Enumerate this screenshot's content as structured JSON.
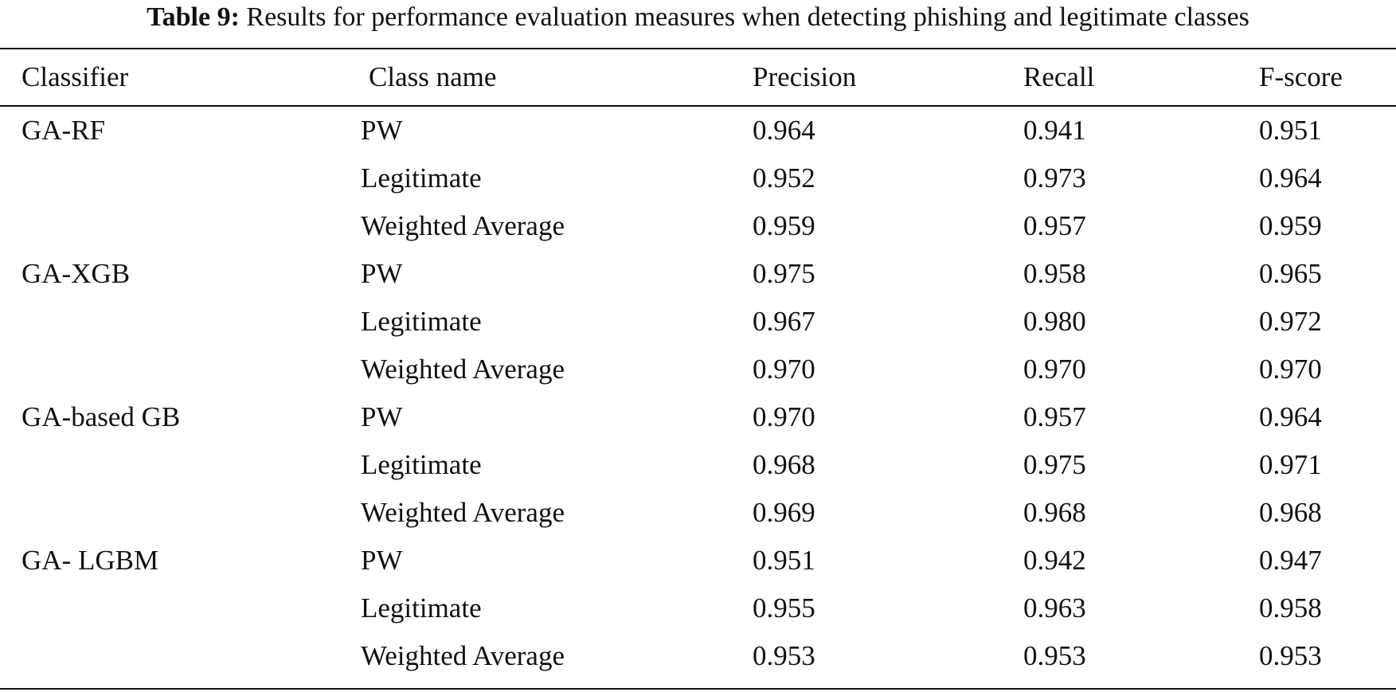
{
  "caption": {
    "label": "Table 9:",
    "text": "Results for performance evaluation measures when detecting phishing and legitimate classes"
  },
  "table": {
    "headers": [
      "Classifier",
      "Class name",
      "Precision",
      "Recall",
      "F-score"
    ],
    "rows": [
      {
        "classifier": "GA-RF",
        "class_name": "PW",
        "precision": "0.964",
        "recall": "0.941",
        "f_score": "0.951"
      },
      {
        "classifier": "",
        "class_name": "Legitimate",
        "precision": "0.952",
        "recall": "0.973",
        "f_score": "0.964"
      },
      {
        "classifier": "",
        "class_name": "Weighted Average",
        "precision": "0.959",
        "recall": "0.957",
        "f_score": "0.959"
      },
      {
        "classifier": "GA-XGB",
        "class_name": "PW",
        "precision": "0.975",
        "recall": "0.958",
        "f_score": "0.965"
      },
      {
        "classifier": "",
        "class_name": "Legitimate",
        "precision": "0.967",
        "recall": "0.980",
        "f_score": "0.972"
      },
      {
        "classifier": "",
        "class_name": "Weighted Average",
        "precision": "0.970",
        "recall": "0.970",
        "f_score": "0.970"
      },
      {
        "classifier": "GA-based GB",
        "class_name": "PW",
        "precision": "0.970",
        "recall": "0.957",
        "f_score": "0.964"
      },
      {
        "classifier": "",
        "class_name": "Legitimate",
        "precision": "0.968",
        "recall": "0.975",
        "f_score": "0.971"
      },
      {
        "classifier": "",
        "class_name": "Weighted Average",
        "precision": "0.969",
        "recall": "0.968",
        "f_score": "0.968"
      },
      {
        "classifier": "GA- LGBM",
        "class_name": "PW",
        "precision": "0.951",
        "recall": "0.942",
        "f_score": "0.947"
      },
      {
        "classifier": "",
        "class_name": "Legitimate",
        "precision": "0.955",
        "recall": "0.963",
        "f_score": "0.958"
      },
      {
        "classifier": "",
        "class_name": "Weighted Average",
        "precision": "0.953",
        "recall": "0.953",
        "f_score": "0.953"
      }
    ]
  }
}
